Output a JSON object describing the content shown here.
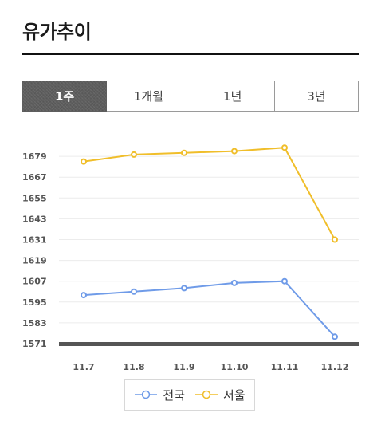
{
  "page_title": "유가추이",
  "tabs": [
    {
      "label": "1주",
      "active": true
    },
    {
      "label": "1개월",
      "active": false
    },
    {
      "label": "1년",
      "active": false
    },
    {
      "label": "3년",
      "active": false
    }
  ],
  "chart_data": {
    "type": "line",
    "title": "",
    "xlabel": "",
    "ylabel": "",
    "x": [
      "11.7",
      "11.8",
      "11.9",
      "11.10",
      "11.11",
      "11.12"
    ],
    "yticks": [
      1571,
      1583,
      1595,
      1607,
      1619,
      1631,
      1643,
      1655,
      1667,
      1679
    ],
    "ylim": [
      1571,
      1690
    ],
    "grid": true,
    "legend_position": "bottom",
    "series": [
      {
        "name": "전국",
        "color": "#6f9be8",
        "values": [
          1599,
          1601,
          1603,
          1606,
          1607,
          1575
        ]
      },
      {
        "name": "서울",
        "color": "#f0be2a",
        "values": [
          1676,
          1680,
          1681,
          1682,
          1684,
          1631
        ]
      }
    ]
  }
}
